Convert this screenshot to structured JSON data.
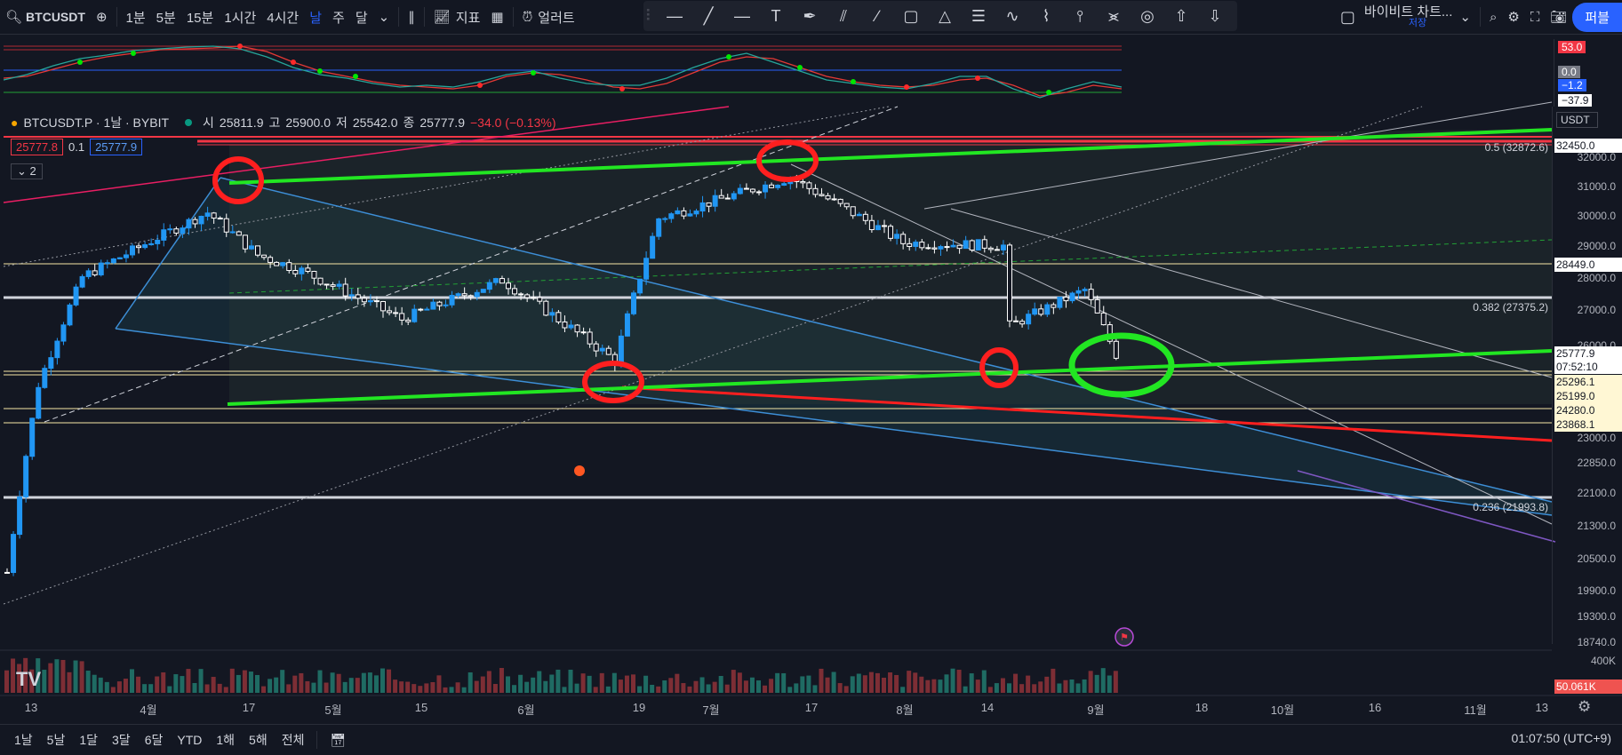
{
  "toolbar": {
    "symbol": "BTCUSDT",
    "intervals": [
      "1분",
      "5분",
      "15분",
      "1시간",
      "4시간",
      "날",
      "주",
      "달"
    ],
    "active_interval": "날",
    "indicators_label": "지표",
    "alert_label": "얼러트",
    "layout_name": "바이비트 차트...",
    "layout_sub": "저장",
    "publish_label": "퍼블"
  },
  "legend": {
    "title": "BTCUSDT.P · 1날 · BYBIT",
    "open_label": "시",
    "open": "25811.9",
    "high_label": "고",
    "high": "25900.0",
    "low_label": "저",
    "low": "25542.0",
    "close_label": "종",
    "close": "25777.9",
    "change": "−34.0 (−0.13%)",
    "bid": "25777.8",
    "spread": "0.1",
    "ask": "25777.9",
    "hidden_count": "2"
  },
  "price_axis": {
    "currency": "USDT",
    "ticks": [
      "32000.0",
      "31000.0",
      "30000.0",
      "29000.0",
      "28000.0",
      "27000.0",
      "26000.0",
      "23000.0",
      "22850.0",
      "22100.0",
      "21300.0",
      "20500.0",
      "19900.0",
      "19300.0",
      "18740.0"
    ],
    "boxes": [
      {
        "text": "32450.0",
        "bg": "#ffffff",
        "fg": "#131722",
        "border": "#f23645"
      },
      {
        "text": "28449.0",
        "bg": "#ffffff",
        "fg": "#131722",
        "border": "#f7e7a6"
      },
      {
        "text": "25777.9",
        "bg": "#ffffff",
        "fg": "#131722",
        "border": "#ffffff"
      },
      {
        "text": "07:52:10",
        "bg": "#ffffff",
        "fg": "#131722",
        "border": "#ffffff"
      },
      {
        "text": "25296.1",
        "bg": "#ffffff",
        "fg": "#131722",
        "border": "#f7e7a6"
      },
      {
        "text": "25199.0",
        "bg": "#ffffff",
        "fg": "#131722",
        "border": "#f7e7a6"
      },
      {
        "text": "24280.0",
        "bg": "#ffffff",
        "fg": "#131722",
        "border": "#f7e7a6"
      },
      {
        "text": "23868.1",
        "bg": "#ffffff",
        "fg": "#131722",
        "border": "#f7e7a6"
      }
    ],
    "volume_tick": "400K",
    "volume_box": "50.061K"
  },
  "indicator_axis": {
    "values": [
      "53.0",
      "0.0",
      "−1.2",
      "−37.9"
    ],
    "colors": [
      "#f23645",
      "#787b86",
      "#2962ff",
      "#131722"
    ]
  },
  "fib_labels": [
    "0.5 (32872.6)",
    "0.382 (27375.2)",
    "0.236 (21993.8)"
  ],
  "time_axis": [
    "13",
    "4월",
    "17",
    "5월",
    "15",
    "6월",
    "19",
    "7월",
    "17",
    "8월",
    "14",
    "9월",
    "18",
    "10월",
    "16",
    "11월",
    "13"
  ],
  "bottom": {
    "ranges": [
      "1날",
      "5날",
      "1달",
      "3달",
      "6달",
      "YTD",
      "1해",
      "5해",
      "전체"
    ],
    "clock": "01:07:50 (UTC+9)"
  },
  "colors": {
    "up": "#26a69a",
    "down": "#ef5350",
    "candle_up": "#2196f3",
    "candle_down": "#ffffff",
    "trend_green": "#22e622",
    "annotation_red": "#ff1f1f"
  },
  "chart_data": {
    "type": "candlestick",
    "title": "BTCUSDT.P · 1날 · BYBIT",
    "ylim": [
      18740,
      33000
    ],
    "y_scale": "log",
    "x_range": [
      "2023-03-10",
      "2023-11-13"
    ],
    "candles_approx": [
      {
        "date": "2023-03-10",
        "close": 20200
      },
      {
        "date": "2023-03-15",
        "close": 24900
      },
      {
        "date": "2023-03-22",
        "close": 28100
      },
      {
        "date": "2023-04-11",
        "close": 30200
      },
      {
        "date": "2023-04-19",
        "close": 28800
      },
      {
        "date": "2023-04-26",
        "close": 28300
      },
      {
        "date": "2023-05-12",
        "close": 26800
      },
      {
        "date": "2023-05-28",
        "close": 28000
      },
      {
        "date": "2023-06-15",
        "close": 25600
      },
      {
        "date": "2023-06-22",
        "close": 30000
      },
      {
        "date": "2023-07-13",
        "close": 31400
      },
      {
        "date": "2023-07-31",
        "close": 29200
      },
      {
        "date": "2023-08-16",
        "close": 29100
      },
      {
        "date": "2023-08-17",
        "close": 26600
      },
      {
        "date": "2023-08-29",
        "close": 27700
      },
      {
        "date": "2023-09-03",
        "close": 25777.9
      }
    ],
    "horizontal_levels": [
      32450.0,
      28449.0,
      25296.1,
      25199.0,
      24280.0,
      23868.1
    ],
    "fib_levels": [
      {
        "level": "0.5",
        "price": 32872.6
      },
      {
        "level": "0.382",
        "price": 27375.2
      },
      {
        "level": "0.236",
        "price": 21993.8
      }
    ]
  }
}
